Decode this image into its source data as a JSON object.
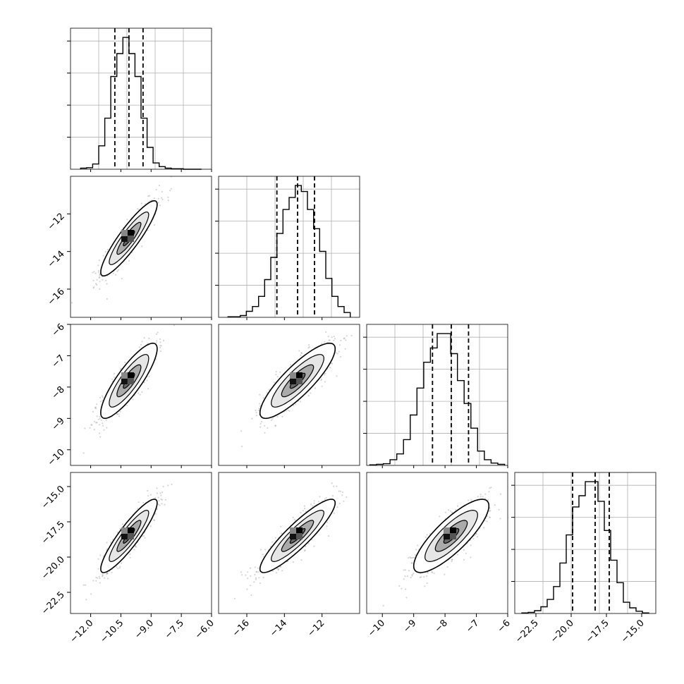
{
  "chart_data": {
    "type": "corner",
    "parameters": 4,
    "quantiles": [
      0.16,
      0.5,
      0.84
    ],
    "grid": true,
    "colors": {
      "line": "#000000",
      "grid": "#b0b0b0",
      "scatter": "#888888"
    },
    "marginals": [
      {
        "param": 0,
        "xlim": [
          -13,
          -6
        ],
        "hist_range": [
          -12.5,
          -6.5
        ],
        "counts": [
          2,
          3,
          10,
          45,
          98,
          178,
          222,
          253,
          222,
          178,
          98,
          42,
          12,
          5,
          2,
          1,
          1,
          0,
          0,
          0
        ],
        "quantile_values": [
          -10.8,
          -10.1,
          -9.4
        ]
      },
      {
        "param": 1,
        "xlim": [
          -17.5,
          -10
        ],
        "hist_range": [
          -17,
          -10.5
        ],
        "counts": [
          1,
          1,
          3,
          10,
          18,
          35,
          63,
          100,
          140,
          180,
          200,
          220,
          210,
          180,
          148,
          110,
          65,
          35,
          18,
          8
        ],
        "quantile_values": [
          -14.4,
          -13.3,
          -12.4
        ]
      },
      {
        "param": 2,
        "xlim": [
          -10.5,
          -6
        ],
        "hist_range": [
          -10.4,
          -6.1
        ],
        "counts": [
          1,
          2,
          3,
          10,
          20,
          45,
          88,
          135,
          180,
          205,
          230,
          230,
          195,
          148,
          108,
          65,
          25,
          10,
          4,
          2
        ],
        "quantile_values": [
          -8.4,
          -7.8,
          -7.25
        ]
      },
      {
        "param": 3,
        "xlim": [
          -24,
          -14
        ],
        "hist_range": [
          -23.5,
          -14.5
        ],
        "counts": [
          1,
          2,
          5,
          12,
          25,
          48,
          90,
          140,
          190,
          210,
          235,
          235,
          200,
          148,
          95,
          55,
          20,
          10,
          4,
          1
        ],
        "quantile_values": [
          -19.9,
          -18.3,
          -17.3
        ]
      }
    ],
    "joints": [
      {
        "x": 0,
        "y": 1,
        "xlim": [
          -13,
          -6
        ],
        "ylim": [
          -17.5,
          -10
        ],
        "mean": [
          -10.1,
          -13.3
        ],
        "sd": [
          0.7,
          1.0
        ],
        "corr": 0.9
      },
      {
        "x": 0,
        "y": 2,
        "xlim": [
          -13,
          -6
        ],
        "ylim": [
          -10.5,
          -6
        ],
        "mean": [
          -10.1,
          -7.8
        ],
        "sd": [
          0.7,
          0.6
        ],
        "corr": 0.85
      },
      {
        "x": 1,
        "y": 2,
        "xlim": [
          -17.5,
          -10
        ],
        "ylim": [
          -10.5,
          -6
        ],
        "mean": [
          -13.3,
          -7.8
        ],
        "sd": [
          1.0,
          0.6
        ],
        "corr": 0.85
      },
      {
        "x": 0,
        "y": 3,
        "xlim": [
          -13,
          -6
        ],
        "ylim": [
          -24,
          -14
        ],
        "mean": [
          -10.1,
          -18.5
        ],
        "sd": [
          0.7,
          1.3
        ],
        "corr": 0.9
      },
      {
        "x": 1,
        "y": 3,
        "xlim": [
          -17.5,
          -10
        ],
        "ylim": [
          -24,
          -14
        ],
        "mean": [
          -13.3,
          -18.5
        ],
        "sd": [
          1.0,
          1.3
        ],
        "corr": 0.9
      },
      {
        "x": 2,
        "y": 3,
        "xlim": [
          -10.5,
          -6
        ],
        "ylim": [
          -24,
          -14
        ],
        "mean": [
          -7.8,
          -18.5
        ],
        "sd": [
          0.6,
          1.3
        ],
        "corr": 0.82
      }
    ],
    "bottom_xticks": [
      [
        "-12.0",
        "-10.5",
        "-9.0",
        "-7.5",
        "-6.0"
      ],
      [
        "-16",
        "-14",
        "-12"
      ],
      [
        "-10",
        "-9",
        "-8",
        "-7",
        "-6"
      ],
      [
        "-22.5",
        "-20.0",
        "-17.5",
        "-15.0"
      ]
    ],
    "left_yticks": [
      null,
      [
        "-12",
        "-14",
        "-16"
      ],
      [
        "-6",
        "-7",
        "-8",
        "-9",
        "-10"
      ],
      [
        "-15.0",
        "-17.5",
        "-20.0",
        "-22.5"
      ]
    ]
  }
}
